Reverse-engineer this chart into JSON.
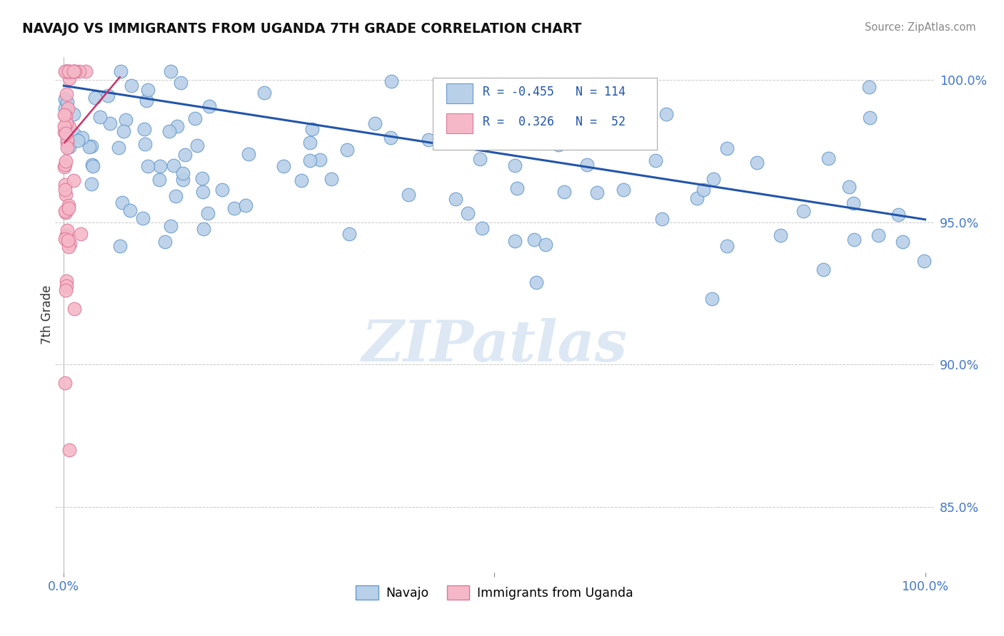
{
  "title": "NAVAJO VS IMMIGRANTS FROM UGANDA 7TH GRADE CORRELATION CHART",
  "source": "Source: ZipAtlas.com",
  "ylabel": "7th Grade",
  "navajo_R": -0.455,
  "navajo_N": 114,
  "uganda_R": 0.326,
  "uganda_N": 52,
  "navajo_color": "#b8d0e8",
  "navajo_edge": "#6699cc",
  "uganda_color": "#f5b8c8",
  "uganda_edge": "#dd7799",
  "trend_navajo_color": "#2255aa",
  "trend_uganda_color": "#cc3366",
  "watermark": "ZIPatlas",
  "xlim": [
    -0.01,
    1.01
  ],
  "ylim": [
    0.827,
    1.008
  ],
  "yticks": [
    0.85,
    0.9,
    0.95,
    1.0
  ],
  "ytick_labels": [
    "85.0%",
    "90.0%",
    "95.0%",
    "100.0%"
  ],
  "navajo_trend_x0": 0.0,
  "navajo_trend_x1": 1.0,
  "navajo_trend_y0": 0.998,
  "navajo_trend_y1": 0.951,
  "uganda_trend_x0": 0.001,
  "uganda_trend_x1": 0.065,
  "uganda_trend_y0": 0.978,
  "uganda_trend_y1": 1.001
}
